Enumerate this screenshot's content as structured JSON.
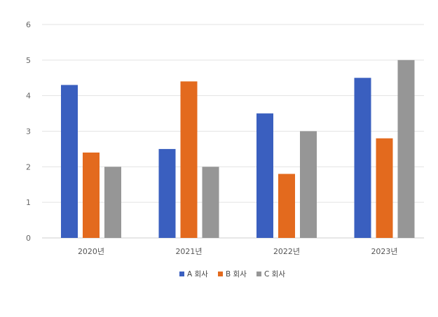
{
  "chart_data": {
    "type": "bar",
    "categories": [
      "2020년",
      "2021년",
      "2022년",
      "2023년"
    ],
    "series": [
      {
        "name": "A 회사",
        "color": "#3A5FBF",
        "values": [
          4.3,
          2.5,
          3.5,
          4.5
        ]
      },
      {
        "name": "B 회사",
        "color": "#E36A1E",
        "values": [
          2.4,
          4.4,
          1.8,
          2.8
        ]
      },
      {
        "name": "C 회사",
        "color": "#969696",
        "values": [
          2.0,
          2.0,
          3.0,
          5.0
        ]
      }
    ],
    "ylim": [
      0,
      6
    ],
    "yticks": [
      0,
      1,
      2,
      3,
      4,
      5,
      6
    ],
    "grid": true,
    "legend_position": "bottom-center"
  }
}
